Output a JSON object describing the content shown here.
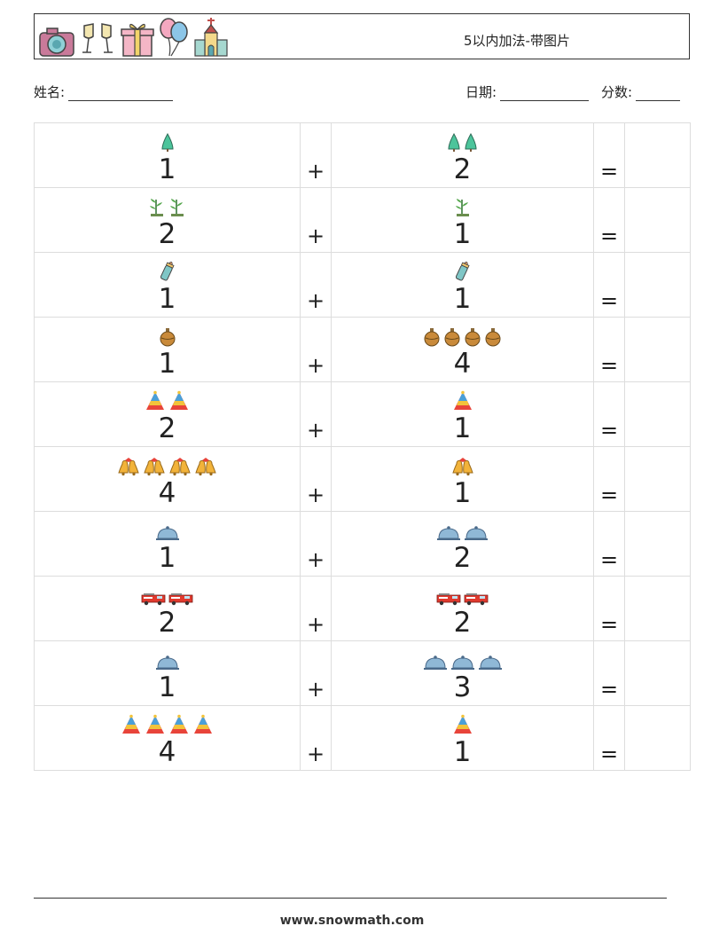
{
  "header": {
    "title": "5以内加法-带图片",
    "icons": [
      "camera-icon",
      "champagne-glasses-icon",
      "gift-box-icon",
      "balloons-icon",
      "church-icon"
    ]
  },
  "fields": {
    "name_label": "姓名:",
    "date_label": "日期:",
    "score_label": "分数:"
  },
  "problems": [
    {
      "a": "1",
      "a_icon": "tree",
      "a_count": 1,
      "op": "+",
      "b": "2",
      "b_icon": "tree",
      "b_count": 2,
      "eq": "="
    },
    {
      "a": "2",
      "a_icon": "sprout",
      "a_count": 2,
      "op": "+",
      "b": "1",
      "b_icon": "sprout",
      "b_count": 1,
      "eq": "="
    },
    {
      "a": "1",
      "a_icon": "baby-bottle",
      "a_count": 1,
      "op": "+",
      "b": "1",
      "b_icon": "baby-bottle",
      "b_count": 1,
      "eq": "="
    },
    {
      "a": "1",
      "a_icon": "ornament",
      "a_count": 1,
      "op": "+",
      "b": "4",
      "b_icon": "ornament",
      "b_count": 4,
      "eq": "="
    },
    {
      "a": "2",
      "a_icon": "party-hat",
      "a_count": 2,
      "op": "+",
      "b": "1",
      "b_icon": "party-hat",
      "b_count": 1,
      "eq": "="
    },
    {
      "a": "4",
      "a_icon": "bells",
      "a_count": 4,
      "op": "+",
      "b": "1",
      "b_icon": "bells",
      "b_count": 1,
      "eq": "="
    },
    {
      "a": "1",
      "a_icon": "cloche",
      "a_count": 1,
      "op": "+",
      "b": "2",
      "b_icon": "cloche",
      "b_count": 2,
      "eq": "="
    },
    {
      "a": "2",
      "a_icon": "fire-truck",
      "a_count": 2,
      "op": "+",
      "b": "2",
      "b_icon": "fire-truck",
      "b_count": 2,
      "eq": "="
    },
    {
      "a": "1",
      "a_icon": "cloche",
      "a_count": 1,
      "op": "+",
      "b": "3",
      "b_icon": "cloche",
      "b_count": 3,
      "eq": "="
    },
    {
      "a": "4",
      "a_icon": "party-hat",
      "a_count": 4,
      "op": "+",
      "b": "1",
      "b_icon": "party-hat",
      "b_count": 1,
      "eq": "="
    }
  ],
  "footer": {
    "url": "www.snowmath.com"
  }
}
